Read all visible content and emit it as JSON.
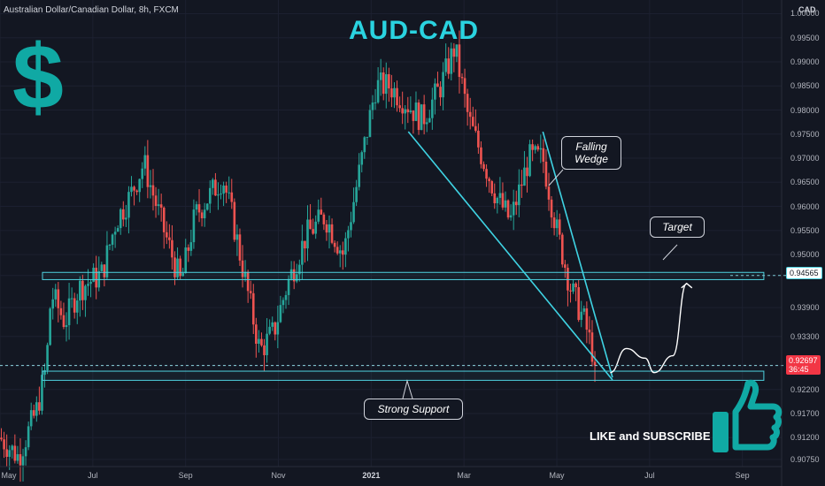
{
  "header": {
    "symbol": "Australian Dollar/Canadian Dollar, 8h, FXCM"
  },
  "title": "AUD-CAD",
  "currency_label": "CAD",
  "cta": {
    "text": "LIKE and SUBSCRIBE",
    "icon": "thumbs-up-icon",
    "logo_icon": "dollar-sign-icon"
  },
  "annotations": {
    "wedge": "Falling Wedge",
    "target": "Target",
    "support": "Strong Support"
  },
  "price_tags": {
    "resistance": "0.94565",
    "current": "0.92697",
    "countdown": "36:45"
  },
  "colors": {
    "background": "#131722",
    "up_candle": "#26a69a",
    "down_candle": "#ef5350",
    "zone_border": "#4fd2e0",
    "title": "#2ad3e0",
    "logo": "#10a9a4"
  },
  "chart_data": {
    "type": "candlestick",
    "timeframe": "8h",
    "y_ticks": [
      "1.00000",
      "0.99500",
      "0.99000",
      "0.98500",
      "0.98000",
      "0.97500",
      "0.97000",
      "0.96500",
      "0.96000",
      "0.95500",
      "0.95000",
      "0.94565",
      "0.93900",
      "0.93300",
      "0.92697",
      "0.92200",
      "0.91700",
      "0.91200",
      "0.90750"
    ],
    "ylim": [
      0.906,
      1.001
    ],
    "x_ticks": [
      {
        "label": "May",
        "x": 0.0
      },
      {
        "label": "Jul",
        "x": 2.0
      },
      {
        "label": "Sep",
        "x": 4.0
      },
      {
        "label": "Nov",
        "x": 6.0
      },
      {
        "label": "2021",
        "x": 8.0,
        "year": true
      },
      {
        "label": "Mar",
        "x": 10.0
      },
      {
        "label": "May",
        "x": 12.0
      },
      {
        "label": "Jul",
        "x": 14.0
      },
      {
        "label": "Sep",
        "x": 16.0
      }
    ],
    "xlim": [
      0.0,
      16.75
    ],
    "last_close": 0.92697,
    "path": [
      [
        0.0,
        0.912
      ],
      [
        0.4,
        0.908
      ],
      [
        0.8,
        0.918
      ],
      [
        1.0,
        0.927
      ],
      [
        1.1,
        0.942
      ],
      [
        1.4,
        0.936
      ],
      [
        1.7,
        0.943
      ],
      [
        2.2,
        0.946
      ],
      [
        2.5,
        0.957
      ],
      [
        2.8,
        0.962
      ],
      [
        3.1,
        0.969
      ],
      [
        3.5,
        0.956
      ],
      [
        3.9,
        0.944
      ],
      [
        4.2,
        0.958
      ],
      [
        4.5,
        0.962
      ],
      [
        4.8,
        0.966
      ],
      [
        5.0,
        0.958
      ],
      [
        5.3,
        0.944
      ],
      [
        5.6,
        0.93
      ],
      [
        5.9,
        0.934
      ],
      [
        6.2,
        0.944
      ],
      [
        6.6,
        0.954
      ],
      [
        7.0,
        0.958
      ],
      [
        7.4,
        0.95
      ],
      [
        7.8,
        0.97
      ],
      [
        8.1,
        0.985
      ],
      [
        8.4,
        0.985
      ],
      [
        8.7,
        0.982
      ],
      [
        9.1,
        0.978
      ],
      [
        9.5,
        0.985
      ],
      [
        9.8,
        0.993
      ],
      [
        10.1,
        0.978
      ],
      [
        10.4,
        0.97
      ],
      [
        10.7,
        0.962
      ],
      [
        11.0,
        0.957
      ],
      [
        11.4,
        0.97
      ],
      [
        11.7,
        0.97
      ],
      [
        12.0,
        0.955
      ],
      [
        12.3,
        0.943
      ],
      [
        12.6,
        0.936
      ],
      [
        12.85,
        0.927
      ]
    ],
    "zones": [
      {
        "name": "Target",
        "x": [
          0.0,
          16.5
        ],
        "y": [
          0.9448,
          0.9463
        ]
      },
      {
        "name": "Strong Support",
        "x": [
          0.0,
          16.5
        ],
        "y": [
          0.9239,
          0.9258
        ]
      }
    ],
    "wedge_lines": [
      {
        "from": [
          8.8,
          0.9755
        ],
        "to": [
          13.2,
          0.924
        ]
      },
      {
        "from": [
          11.7,
          0.9755
        ],
        "to": [
          13.2,
          0.9245
        ]
      }
    ],
    "projection": [
      [
        13.15,
        0.9255
      ],
      [
        13.5,
        0.9305
      ],
      [
        13.9,
        0.9285
      ],
      [
        14.1,
        0.9255
      ],
      [
        14.5,
        0.929
      ],
      [
        14.8,
        0.944
      ]
    ]
  }
}
